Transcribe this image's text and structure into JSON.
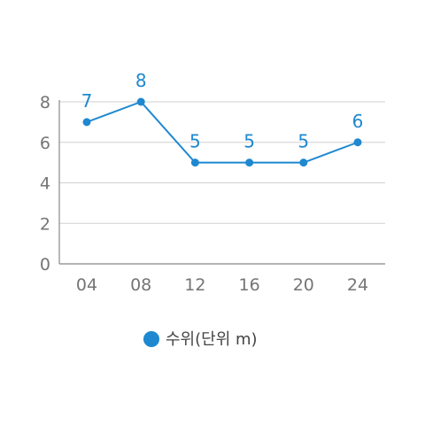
{
  "chart_data": {
    "type": "line",
    "categories": [
      "04",
      "08",
      "12",
      "16",
      "20",
      "24"
    ],
    "series": [
      {
        "name": "수위(단위 m)",
        "values": [
          7,
          8,
          5,
          5,
          5,
          6
        ],
        "color": "#1e88d0"
      }
    ],
    "y_ticks": [
      "0",
      "2",
      "4",
      "6",
      "8"
    ],
    "ylim": [
      0,
      8
    ],
    "grid": true,
    "legend": "bottom",
    "data_labels": true
  }
}
